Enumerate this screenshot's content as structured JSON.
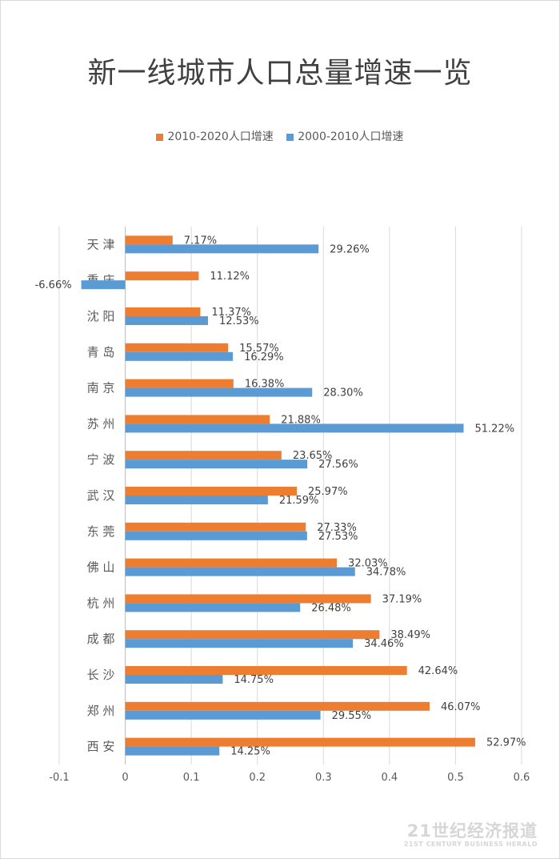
{
  "chart_data": {
    "type": "bar",
    "orientation": "horizontal",
    "title": "新一线城市人口总量增速一览",
    "categories": [
      "天 津",
      "重 庆",
      "沈 阳",
      "青 岛",
      "南 京",
      "苏 州",
      "宁 波",
      "武 汉",
      "东 莞",
      "佛 山",
      "杭 州",
      "成 都",
      "长 沙",
      "郑 州",
      "西 安"
    ],
    "series": [
      {
        "name": "2010-2020人口增速",
        "color": "#ED7D31",
        "values": [
          0.0717,
          0.1112,
          0.1137,
          0.1557,
          0.1638,
          0.2188,
          0.2365,
          0.2597,
          0.2733,
          0.3203,
          0.3719,
          0.3849,
          0.4264,
          0.4607,
          0.5297
        ],
        "labels": [
          "7.17%",
          "11.12%",
          "11.37%",
          "15.57%",
          "16.38%",
          "21.88%",
          "23.65%",
          "25.97%",
          "27.33%",
          "32.03%",
          "37.19%",
          "38.49%",
          "42.64%",
          "46.07%",
          "52.97%"
        ]
      },
      {
        "name": "2000-2010人口增速",
        "color": "#5B9BD5",
        "values": [
          0.2926,
          -0.0666,
          0.1253,
          0.1629,
          0.283,
          0.5122,
          0.2756,
          0.2159,
          0.2753,
          0.3478,
          0.2648,
          0.3446,
          0.1475,
          0.2955,
          0.1425
        ],
        "labels": [
          "29.26%",
          "-6.66%",
          "12.53%",
          "16.29%",
          "28.30%",
          "51.22%",
          "27.56%",
          "21.59%",
          "27.53%",
          "34.78%",
          "26.48%",
          "34.46%",
          "14.75%",
          "29.55%",
          "14.25%"
        ]
      }
    ],
    "xlim": [
      -0.1,
      0.6
    ],
    "xticks": [
      -0.1,
      0,
      0.1,
      0.2,
      0.3,
      0.4,
      0.5,
      0.6
    ],
    "xtick_labels": [
      "-0.1",
      "0",
      "0.1",
      "0.2",
      "0.3",
      "0.4",
      "0.5",
      "0.6"
    ],
    "grid": "vertical",
    "legend": "top"
  },
  "watermark": {
    "main": "21世纪经济报道",
    "sub": "21ST CENTURY BUSINESS HERALD"
  }
}
